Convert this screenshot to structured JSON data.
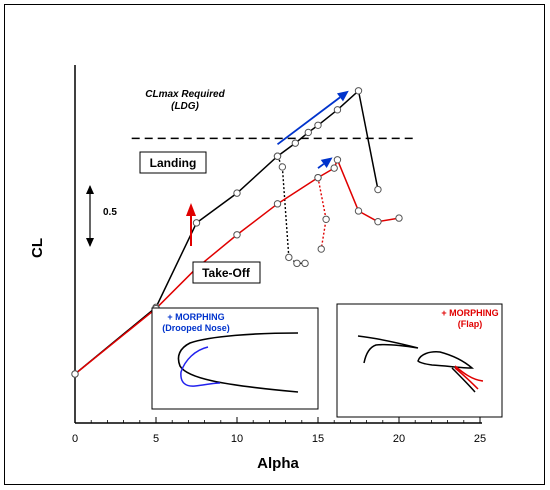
{
  "chart_data": {
    "type": "line",
    "xlabel": "Alpha",
    "ylabel": "CL",
    "xlim": [
      0,
      25
    ],
    "x_ticks": [
      "0",
      "5",
      "10",
      "15",
      "20",
      "25"
    ],
    "grid": false,
    "scale_bar_label": "0.5",
    "series": [
      {
        "color": "#000000",
        "style": "solid",
        "points": [
          [
            0,
            0.0
          ],
          [
            5,
            0.56
          ],
          [
            7.5,
            1.27
          ],
          [
            10,
            1.52
          ],
          [
            12.5,
            1.83
          ],
          [
            13.6,
            1.94
          ],
          [
            14.4,
            2.03
          ],
          [
            15,
            2.09
          ],
          [
            16.2,
            2.22
          ],
          [
            17.5,
            2.38
          ],
          [
            18.7,
            1.55
          ]
        ]
      },
      {
        "color": "#000000",
        "style": "dotted",
        "points": [
          [
            12.5,
            1.83
          ],
          [
            12.8,
            1.74
          ],
          [
            13.2,
            0.98
          ],
          [
            13.7,
            0.93
          ],
          [
            14.2,
            0.93
          ]
        ]
      },
      {
        "color": "#e00000",
        "style": "solid",
        "points": [
          [
            0,
            0.0
          ],
          [
            5,
            0.55
          ],
          [
            7.5,
            0.89
          ],
          [
            10,
            1.17
          ],
          [
            12.5,
            1.43
          ],
          [
            15,
            1.65
          ],
          [
            16,
            1.73
          ],
          [
            16.2,
            1.8
          ],
          [
            17.5,
            1.37
          ],
          [
            18.7,
            1.28
          ],
          [
            20,
            1.31
          ]
        ]
      },
      {
        "color": "#e00000",
        "style": "dotted",
        "points": [
          [
            15,
            1.65
          ],
          [
            15.5,
            1.3
          ],
          [
            15.2,
            1.05
          ]
        ]
      },
      {
        "color": "#0033cc",
        "style": "arrow",
        "points": [
          [
            12.5,
            1.93
          ],
          [
            16.9,
            2.38
          ]
        ]
      },
      {
        "color": "#0033cc",
        "style": "arrow",
        "points": [
          [
            15,
            1.73
          ],
          [
            15.9,
            1.82
          ]
        ]
      }
    ],
    "reference_line": {
      "y": 1.98,
      "x_from": 3.5,
      "x_to": 21,
      "style": "dashed"
    },
    "annotations": [
      "CLmax Required",
      "(LDG)"
    ],
    "labels": [
      "Landing",
      "Take-Off"
    ],
    "insets": [
      {
        "title_line1": "+ MORPHING",
        "title_line2": "(Drooped Nose)",
        "color": "#0033cc"
      },
      {
        "title_line1": "+ MORPHING",
        "title_line2": "(Flap)",
        "color": "#e00000"
      }
    ]
  }
}
